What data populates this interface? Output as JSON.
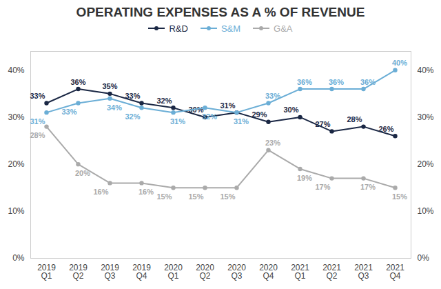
{
  "chart_data": {
    "type": "line",
    "title": "OPERATING EXPENSES AS A % OF REVENUE",
    "categories": [
      "2019\nQ1",
      "2019\nQ2",
      "2019\nQ3",
      "2019\nQ4",
      "2020\nQ1",
      "2020\nQ2",
      "2020\nQ3",
      "2020\nQ4",
      "2021\nQ1",
      "2021\nQ2",
      "2021\nQ3",
      "2021\nQ4"
    ],
    "series": [
      {
        "name": "R&D",
        "color": "#1a2744",
        "values": [
          33,
          36,
          35,
          33,
          32,
          30,
          31,
          29,
          30,
          27,
          28,
          26
        ],
        "value_labels": [
          "33%",
          "36%",
          "35%",
          "33%",
          "32%",
          "30%",
          "31%",
          "29%",
          "30%",
          "27%",
          "28%",
          "26%"
        ]
      },
      {
        "name": "S&M",
        "color": "#6baed6",
        "values": [
          31,
          33,
          34,
          32,
          31,
          32,
          31,
          33,
          36,
          36,
          36,
          40
        ],
        "value_labels": [
          "31%",
          "33%",
          "34%",
          "32%",
          "31%",
          "32%",
          "31%",
          "33%",
          "36%",
          "36%",
          "36%",
          "40%"
        ]
      },
      {
        "name": "G&A",
        "color": "#aaaaaa",
        "values": [
          28,
          20,
          16,
          16,
          15,
          15,
          15,
          23,
          19,
          17,
          17,
          15
        ],
        "value_labels": [
          "28%",
          "20%",
          "16%",
          "16%",
          "15%",
          "15%",
          "15%",
          "23%",
          "19%",
          "17%",
          "17%",
          "15%"
        ]
      }
    ],
    "ylim": [
      0,
      44
    ],
    "yticks": [
      {
        "value": 0,
        "label": "0%"
      },
      {
        "value": 10,
        "label": "10%"
      },
      {
        "value": 20,
        "label": "20%"
      },
      {
        "value": 30,
        "label": "30%"
      },
      {
        "value": 40,
        "label": "40%"
      }
    ],
    "y2lim": [
      0,
      44
    ],
    "y2ticks": [
      {
        "value": 0,
        "label": "0%"
      },
      {
        "value": 10,
        "label": "10%"
      },
      {
        "value": 20,
        "label": "20%"
      },
      {
        "value": 30,
        "label": "30%"
      },
      {
        "value": 40,
        "label": "40%"
      }
    ],
    "grid": false,
    "legend": "top",
    "data_labels": true,
    "marker": "circle"
  }
}
